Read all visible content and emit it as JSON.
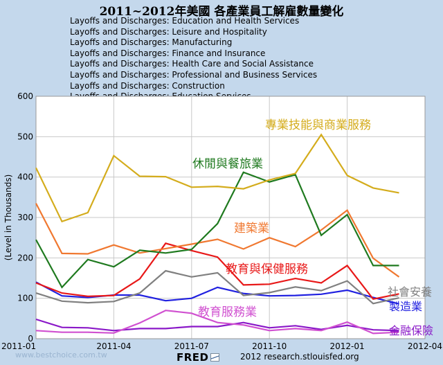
{
  "title": "2011~2012年美國 各產業員工解雇數量變化",
  "series_list": [
    "Layoffs and Discharges: Education and Health Services",
    "Layoffs and Discharges: Leisure and Hospitality",
    "Layoffs and Discharges: Manufacturing",
    "Layoffs and Discharges: Finance and Insurance",
    "Layoffs and Discharges: Health Care and Social Assistance",
    "Layoffs and Discharges: Professional and Business Services",
    "Layoffs and Discharges: Construction",
    "Layoffs and Discharges: Education Services"
  ],
  "footer": {
    "logo": "FRED",
    "source": "2012 research.stlouisfed.org",
    "watermark": "www.bestchoice.com.tw"
  },
  "chart_data": {
    "type": "line",
    "ylabel": "(Level in Thousands)",
    "xlabel": "",
    "ylim": [
      0,
      600
    ],
    "yticks": [
      0,
      100,
      200,
      300,
      400,
      500,
      600
    ],
    "xlim": [
      0,
      15
    ],
    "xticks": [
      {
        "label": "2011-01",
        "pos": 0
      },
      {
        "label": "2011-04",
        "pos": 3
      },
      {
        "label": "2011-07",
        "pos": 6
      },
      {
        "label": "2011-10",
        "pos": 9
      },
      {
        "label": "2012-01",
        "pos": 12
      },
      {
        "label": "2012-04",
        "pos": 15
      }
    ],
    "grid": true,
    "x": [
      0,
      1,
      2,
      3,
      4,
      5,
      6,
      7,
      8,
      9,
      10,
      11,
      12,
      13,
      14
    ],
    "series": [
      {
        "name": "專業技能與商業服務",
        "color": "#d4ac1c",
        "values": [
          423,
          290,
          312,
          453,
          402,
          401,
          375,
          377,
          371,
          393,
          409,
          505,
          404,
          373,
          361
        ]
      },
      {
        "name": "休閒與餐旅業",
        "color": "#1f7a1f",
        "values": [
          245,
          127,
          196,
          178,
          219,
          212,
          221,
          285,
          412,
          388,
          406,
          256,
          307,
          181,
          181
        ]
      },
      {
        "name": "建築業",
        "color": "#f07830",
        "values": [
          335,
          211,
          210,
          232,
          212,
          223,
          234,
          246,
          222,
          250,
          228,
          269,
          318,
          199,
          153
        ]
      },
      {
        "name": "教育與保健服務",
        "color": "#e81818",
        "values": [
          138,
          113,
          105,
          107,
          148,
          236,
          218,
          202,
          133,
          135,
          149,
          138,
          181,
          98,
          111
        ]
      },
      {
        "name": "社會安養",
        "color": "#808080",
        "values": [
          113,
          93,
          89,
          92,
          113,
          168,
          153,
          163,
          107,
          114,
          128,
          119,
          143,
          87,
          101
        ]
      },
      {
        "name": "製造業",
        "color": "#2020e0",
        "values": [
          140,
          106,
          102,
          108,
          108,
          94,
          100,
          127,
          112,
          106,
          107,
          110,
          120,
          102,
          86
        ]
      },
      {
        "name": "教育服務業",
        "color": "#d050d0",
        "values": [
          20,
          16,
          16,
          14,
          39,
          70,
          63,
          40,
          34,
          20,
          25,
          20,
          41,
          13,
          16
        ]
      },
      {
        "name": "金融保險",
        "color": "#8a18c8",
        "values": [
          48,
          28,
          27,
          20,
          25,
          25,
          30,
          30,
          40,
          27,
          32,
          23,
          33,
          22,
          20
        ]
      }
    ]
  }
}
